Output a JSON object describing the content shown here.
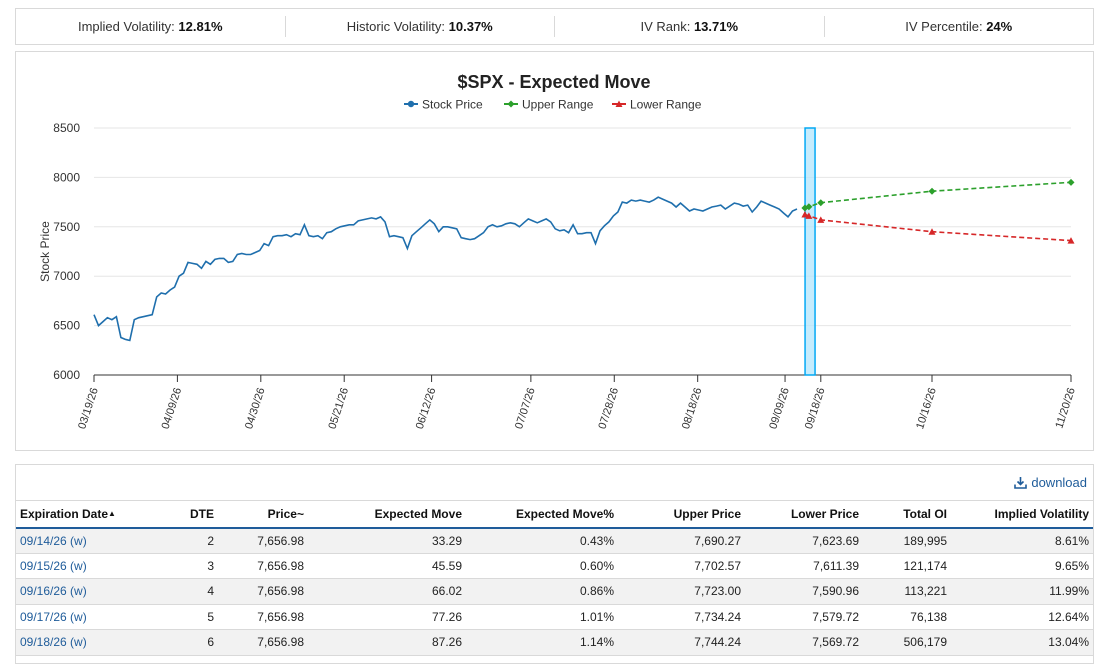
{
  "stats": [
    {
      "label": "Implied Volatility:",
      "value": "12.81%"
    },
    {
      "label": "Historic Volatility:",
      "value": "10.37%"
    },
    {
      "label": "IV Rank:",
      "value": "13.71%"
    },
    {
      "label": "IV Percentile:",
      "value": "24%"
    }
  ],
  "chart_data": {
    "type": "line",
    "title": "$SPX - Expected Move",
    "ylabel": "Stock Price",
    "xlabel": "",
    "ylim": [
      6000,
      8500
    ],
    "yticks": [
      6000,
      6500,
      7000,
      7500,
      8000,
      8500
    ],
    "grid": true,
    "legend_position": "top",
    "xticks": [
      "03/19/26",
      "04/09/26",
      "04/30/26",
      "05/21/26",
      "06/12/26",
      "07/07/26",
      "07/28/26",
      "08/18/26",
      "09/09/26",
      "09/18/26",
      "10/16/26",
      "11/20/26"
    ],
    "highlight_region": {
      "from": "09/09/26",
      "to": "09/18/26"
    },
    "series": [
      {
        "name": "Stock Price",
        "color": "#1f6fad",
        "marker": "circle",
        "style": "solid",
        "values": [
          6610,
          6500,
          6540,
          6580,
          6560,
          6590,
          6380,
          6360,
          6350,
          6560,
          6580,
          6590,
          6600,
          6610,
          6790,
          6830,
          6820,
          6860,
          6890,
          7000,
          7030,
          7140,
          7130,
          7120,
          7080,
          7150,
          7120,
          7170,
          7180,
          7180,
          7140,
          7150,
          7220,
          7230,
          7220,
          7220,
          7240,
          7260,
          7330,
          7310,
          7400,
          7410,
          7410,
          7420,
          7400,
          7430,
          7420,
          7520,
          7410,
          7400,
          7410,
          7380,
          7440,
          7450,
          7480,
          7500,
          7510,
          7520,
          7520,
          7560,
          7570,
          7580,
          7590,
          7580,
          7600,
          7550,
          7400,
          7410,
          7400,
          7390,
          7280,
          7410,
          7450,
          7490,
          7530,
          7570,
          7530,
          7450,
          7500,
          7500,
          7490,
          7480,
          7390,
          7380,
          7370,
          7380,
          7410,
          7440,
          7500,
          7520,
          7500,
          7510,
          7530,
          7540,
          7530,
          7500,
          7540,
          7580,
          7560,
          7540,
          7560,
          7580,
          7550,
          7480,
          7460,
          7470,
          7440,
          7520,
          7430,
          7430,
          7440,
          7440,
          7330,
          7460,
          7510,
          7550,
          7610,
          7650,
          7750,
          7740,
          7770,
          7760,
          7770,
          7760,
          7750,
          7770,
          7800,
          7780,
          7760,
          7740,
          7700,
          7740,
          7700,
          7660,
          7680,
          7670,
          7660,
          7680,
          7700,
          7710,
          7720,
          7680,
          7710,
          7740,
          7730,
          7710,
          7720,
          7650,
          7700,
          7760,
          7740,
          7720,
          7700,
          7680,
          7640,
          7600,
          7660,
          7680
        ]
      },
      {
        "name": "Upper Range",
        "color": "#2ca02c",
        "marker": "diamond",
        "style": "dashed",
        "x": [
          "09/14/26",
          "09/15/26",
          "09/18/26",
          "10/16/26",
          "11/20/26"
        ],
        "values": [
          7690,
          7703,
          7744,
          7860,
          7950
        ]
      },
      {
        "name": "Lower Range",
        "color": "#d62728",
        "marker": "triangle",
        "style": "dashed",
        "x": [
          "09/14/26",
          "09/15/26",
          "09/18/26",
          "10/16/26",
          "11/20/26"
        ],
        "values": [
          7624,
          7611,
          7570,
          7450,
          7360
        ]
      }
    ]
  },
  "table": {
    "download_label": "download",
    "columns": [
      "Expiration Date",
      "DTE",
      "Price~",
      "Expected Move",
      "Expected Move%",
      "Upper Price",
      "Lower Price",
      "Total OI",
      "Implied Volatility"
    ],
    "sort_indicator": "▲",
    "rows": [
      [
        "09/14/26 (w)",
        "2",
        "7,656.98",
        "33.29",
        "0.43%",
        "7,690.27",
        "7,623.69",
        "189,995",
        "8.61%"
      ],
      [
        "09/15/26 (w)",
        "3",
        "7,656.98",
        "45.59",
        "0.60%",
        "7,702.57",
        "7,611.39",
        "121,174",
        "9.65%"
      ],
      [
        "09/16/26 (w)",
        "4",
        "7,656.98",
        "66.02",
        "0.86%",
        "7,723.00",
        "7,590.96",
        "113,221",
        "11.99%"
      ],
      [
        "09/17/26 (w)",
        "5",
        "7,656.98",
        "77.26",
        "1.01%",
        "7,734.24",
        "7,579.72",
        "76,138",
        "12.64%"
      ],
      [
        "09/18/26 (w)",
        "6",
        "7,656.98",
        "87.26",
        "1.14%",
        "7,744.24",
        "7,569.72",
        "506,179",
        "13.04%"
      ]
    ]
  }
}
